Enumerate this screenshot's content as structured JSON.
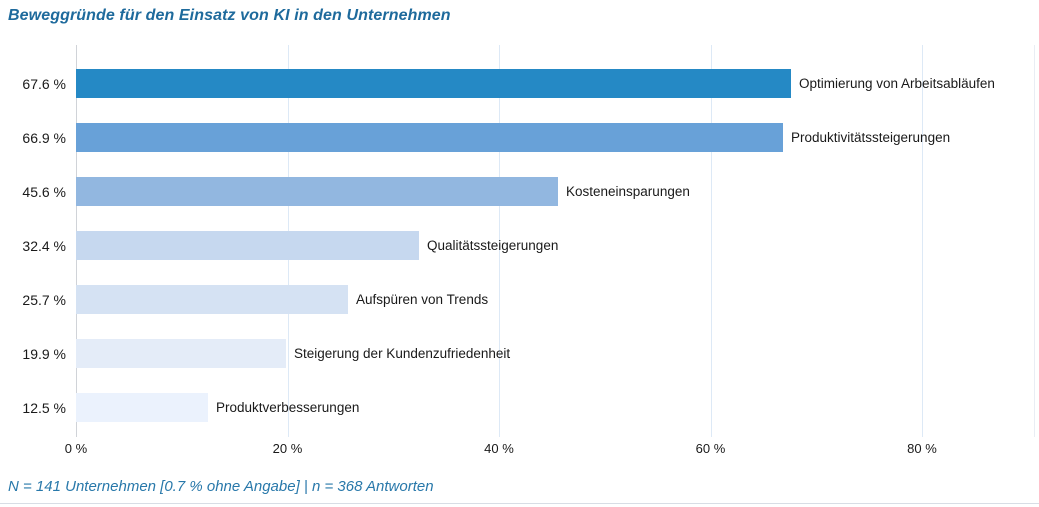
{
  "title": "Beweggründe für den Einsatz von KI in den Unternehmen",
  "footer": "N = 141 Unternehmen [0.7 % ohne Angabe]   |   n = 368 Antworten",
  "chart_data": {
    "type": "bar",
    "orientation": "horizontal",
    "title": "Beweggründe für den Einsatz von KI in den Unternehmen",
    "categories": [
      "Optimierung von Arbeitsabläufen",
      "Produktivitätssteigerungen",
      "Kosteneinsparungen",
      "Qualitätssteigerungen",
      "Aufspüren von Trends",
      "Steigerung der Kundenzufriedenheit",
      "Produktverbesserungen"
    ],
    "values": [
      67.6,
      66.9,
      45.6,
      32.4,
      25.7,
      19.9,
      12.5
    ],
    "value_labels": [
      "67.6 %",
      "66.9 %",
      "45.6 %",
      "32.4 %",
      "25.7 %",
      "19.9 %",
      "12.5 %"
    ],
    "bar_colors": [
      "#2589c5",
      "#68a1d8",
      "#92b7e0",
      "#c6d8ef",
      "#d5e2f3",
      "#e4ecf8",
      "#ebf2fd"
    ],
    "x_ticks": [
      {
        "label": "0 %",
        "value": 0
      },
      {
        "label": "20 %",
        "value": 20
      },
      {
        "label": "40 %",
        "value": 40
      },
      {
        "label": "60 %",
        "value": 60
      },
      {
        "label": "80 %",
        "value": 80
      }
    ],
    "xlim": [
      0,
      90.7
    ],
    "grid": true,
    "legend": "none",
    "value_label_position": "left-of-axis",
    "category_label_position": "right-of-bar",
    "annotation": "N = 141 Unternehmen [0.7 % ohne Angabe] | n = 368 Antworten"
  },
  "colors": {
    "title_text": "#1e6a9c",
    "footer_text": "#2878aa",
    "label_text": "#1a1a1a",
    "gridline": "#dde9f6",
    "axis_line": "#d0d3d8",
    "right_edge_line": "#e9edf4",
    "bottom_rule": "#d8dde5",
    "background": "#ffffff"
  }
}
